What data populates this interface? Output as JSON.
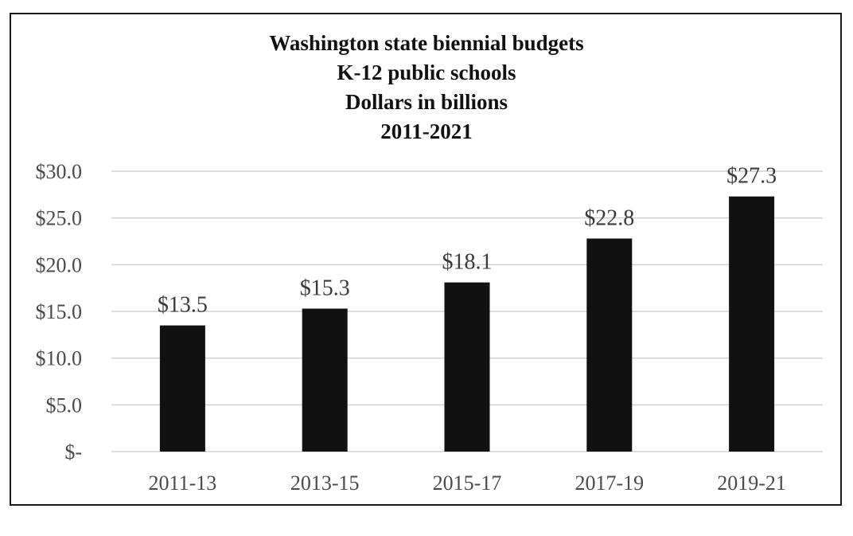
{
  "chart_data": {
    "type": "bar",
    "title_lines": [
      "Washington state biennial budgets",
      "K-12 public schools",
      "Dollars in billions",
      "2011-2021"
    ],
    "categories": [
      "2011-13",
      "2013-15",
      "2015-17",
      "2017-19",
      "2019-21"
    ],
    "values": [
      13.5,
      15.3,
      18.1,
      22.8,
      27.3
    ],
    "data_labels": [
      "$13.5",
      "$15.3",
      "$18.1",
      "$22.8",
      "$27.3"
    ],
    "y_ticks": [
      0,
      5,
      10,
      15,
      20,
      25,
      30
    ],
    "y_tick_labels": [
      "$-",
      "$5.0",
      "$10.0",
      "$15.0",
      "$20.0",
      "$25.0",
      "$30.0"
    ],
    "ylim": [
      0,
      30
    ],
    "xlabel": "",
    "ylabel": "",
    "grid": true,
    "legend": "none",
    "colors": {
      "bar": "#111111",
      "grid": "#d0d0d0",
      "text": "#4a4a4a"
    }
  }
}
